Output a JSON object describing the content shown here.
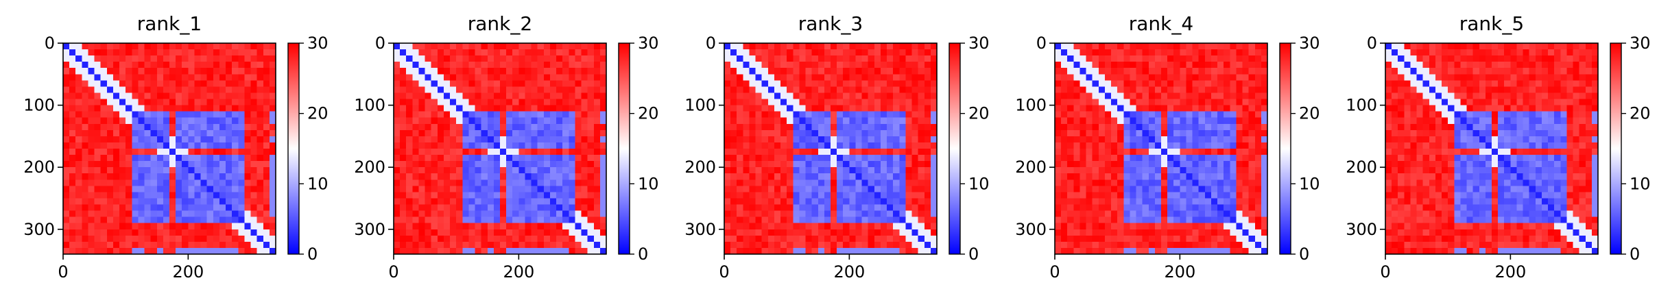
{
  "chart_data": [
    {
      "type": "heatmap",
      "title": "rank_1",
      "xlabel": "",
      "ylabel": "",
      "xlim": [
        0,
        340
      ],
      "ylim": [
        340,
        0
      ],
      "xticks": [
        0,
        200
      ],
      "yticks": [
        0,
        100,
        200,
        300
      ],
      "colorbar": {
        "min": 0,
        "max": 30,
        "ticks": [
          0,
          10,
          20,
          30
        ],
        "colors": [
          "#0000ff",
          "#ffffff",
          "#ff0000"
        ]
      },
      "blocks": {
        "bands": [
          [
            112,
            148
          ],
          [
            153,
            166
          ],
          [
            180,
            285
          ]
        ],
        "edge_bands": [
          [
            112,
            132
          ],
          [
            150,
            164
          ],
          [
            182,
            283
          ]
        ]
      }
    },
    {
      "type": "heatmap",
      "title": "rank_2",
      "xlabel": "",
      "ylabel": "",
      "xlim": [
        0,
        340
      ],
      "ylim": [
        340,
        0
      ],
      "xticks": [
        0,
        200
      ],
      "yticks": [
        0,
        100,
        200,
        300
      ],
      "colorbar": {
        "min": 0,
        "max": 30,
        "ticks": [
          0,
          10,
          20,
          30
        ],
        "colors": [
          "#0000ff",
          "#ffffff",
          "#ff0000"
        ]
      },
      "blocks": {
        "bands": [
          [
            112,
            148
          ],
          [
            153,
            166
          ],
          [
            180,
            285
          ]
        ],
        "edge_bands": [
          [
            112,
            132
          ],
          [
            150,
            164
          ],
          [
            182,
            283
          ]
        ]
      }
    },
    {
      "type": "heatmap",
      "title": "rank_3",
      "xlabel": "",
      "ylabel": "",
      "xlim": [
        0,
        340
      ],
      "ylim": [
        340,
        0
      ],
      "xticks": [
        0,
        200
      ],
      "yticks": [
        0,
        100,
        200,
        300
      ],
      "colorbar": {
        "min": 0,
        "max": 30,
        "ticks": [
          0,
          10,
          20,
          30
        ],
        "colors": [
          "#0000ff",
          "#ffffff",
          "#ff0000"
        ]
      },
      "blocks": {
        "bands": [
          [
            112,
            148
          ],
          [
            153,
            166
          ],
          [
            180,
            285
          ]
        ],
        "edge_bands": [
          [
            112,
            132
          ],
          [
            150,
            164
          ],
          [
            182,
            283
          ]
        ]
      }
    },
    {
      "type": "heatmap",
      "title": "rank_4",
      "xlabel": "",
      "ylabel": "",
      "xlim": [
        0,
        340
      ],
      "ylim": [
        340,
        0
      ],
      "xticks": [
        0,
        200
      ],
      "yticks": [
        0,
        100,
        200,
        300
      ],
      "colorbar": {
        "min": 0,
        "max": 30,
        "ticks": [
          0,
          10,
          20,
          30
        ],
        "colors": [
          "#0000ff",
          "#ffffff",
          "#ff0000"
        ]
      },
      "blocks": {
        "bands": [
          [
            112,
            148
          ],
          [
            153,
            166
          ],
          [
            180,
            285
          ]
        ],
        "edge_bands": [
          [
            112,
            132
          ],
          [
            150,
            164
          ],
          [
            182,
            283
          ]
        ]
      }
    },
    {
      "type": "heatmap",
      "title": "rank_5",
      "xlabel": "",
      "ylabel": "",
      "xlim": [
        0,
        340
      ],
      "ylim": [
        340,
        0
      ],
      "xticks": [
        0,
        200
      ],
      "yticks": [
        0,
        100,
        200,
        300
      ],
      "colorbar": {
        "min": 0,
        "max": 30,
        "ticks": [
          0,
          10,
          20,
          30
        ],
        "colors": [
          "#0000ff",
          "#ffffff",
          "#ff0000"
        ]
      },
      "blocks": {
        "bands": [
          [
            112,
            148
          ],
          [
            153,
            166
          ],
          [
            180,
            285
          ]
        ],
        "edge_bands": [
          [
            112,
            132
          ],
          [
            150,
            164
          ],
          [
            182,
            283
          ]
        ]
      }
    }
  ]
}
